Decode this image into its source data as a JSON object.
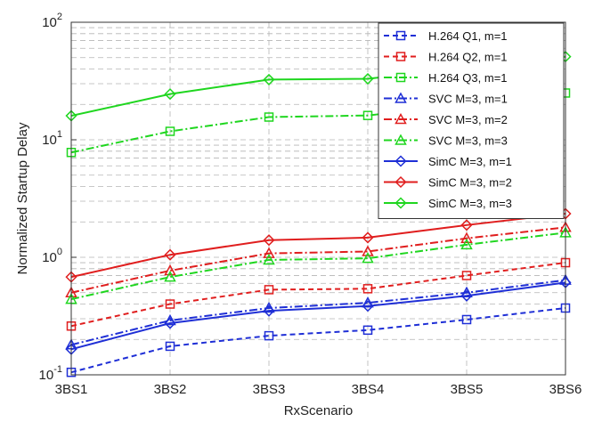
{
  "chart_data": {
    "type": "line",
    "xlabel": "RxScenario",
    "ylabel": "Normalized Startup Delay",
    "y_scale": "log",
    "ylim": [
      0.1,
      100
    ],
    "y_ticks": [
      {
        "value": 0.1,
        "base": "10",
        "exp": "-1"
      },
      {
        "value": 1,
        "base": "10",
        "exp": "0"
      },
      {
        "value": 10,
        "base": "10",
        "exp": "1"
      },
      {
        "value": 100,
        "base": "10",
        "exp": "2"
      }
    ],
    "categories": [
      "3BS1",
      "3BS2",
      "3BS3",
      "3BS4",
      "3BS5",
      "3BS6"
    ],
    "grid": true,
    "legend_position": "top-right",
    "series": [
      {
        "name": "H.264 Q1, m=1",
        "color": "#1f2fd6",
        "dash": "dashed",
        "marker": "square",
        "values": [
          0.105,
          0.175,
          0.215,
          0.24,
          0.295,
          0.37
        ]
      },
      {
        "name": "H.264 Q2, m=1",
        "color": "#e01e1e",
        "dash": "dashed",
        "marker": "square",
        "values": [
          0.26,
          0.4,
          0.53,
          0.54,
          0.7,
          0.9
        ]
      },
      {
        "name": "H.264 Q3, m=1",
        "color": "#1fd61f",
        "dash": "dashdot",
        "marker": "square",
        "values": [
          7.8,
          11.8,
          15.6,
          16.1,
          null,
          25.0
        ]
      },
      {
        "name": "SVC M=3, m=1",
        "color": "#1f2fd6",
        "dash": "dashdot",
        "marker": "triangle",
        "values": [
          0.18,
          0.29,
          0.37,
          0.41,
          0.5,
          0.64
        ]
      },
      {
        "name": "SVC M=3, m=2",
        "color": "#e01e1e",
        "dash": "dashdot",
        "marker": "triangle",
        "values": [
          0.5,
          0.77,
          1.08,
          1.12,
          1.45,
          1.8
        ]
      },
      {
        "name": "SVC M=3, m=3",
        "color": "#1fd61f",
        "dash": "dashdot",
        "marker": "triangle",
        "values": [
          0.44,
          0.68,
          0.95,
          0.98,
          1.28,
          1.62
        ]
      },
      {
        "name": "SimC M=3, m=1",
        "color": "#1f2fd6",
        "dash": "solid",
        "marker": "diamond",
        "values": [
          0.165,
          0.275,
          0.35,
          0.385,
          0.47,
          0.61
        ]
      },
      {
        "name": "SimC M=3, m=2",
        "color": "#e01e1e",
        "dash": "solid",
        "marker": "diamond",
        "values": [
          0.68,
          1.05,
          1.4,
          1.47,
          1.88,
          2.35
        ]
      },
      {
        "name": "SimC M=3, m=3",
        "color": "#1fd61f",
        "dash": "solid",
        "marker": "diamond",
        "values": [
          16.0,
          24.5,
          32.5,
          33.0,
          null,
          51.0
        ]
      }
    ]
  }
}
